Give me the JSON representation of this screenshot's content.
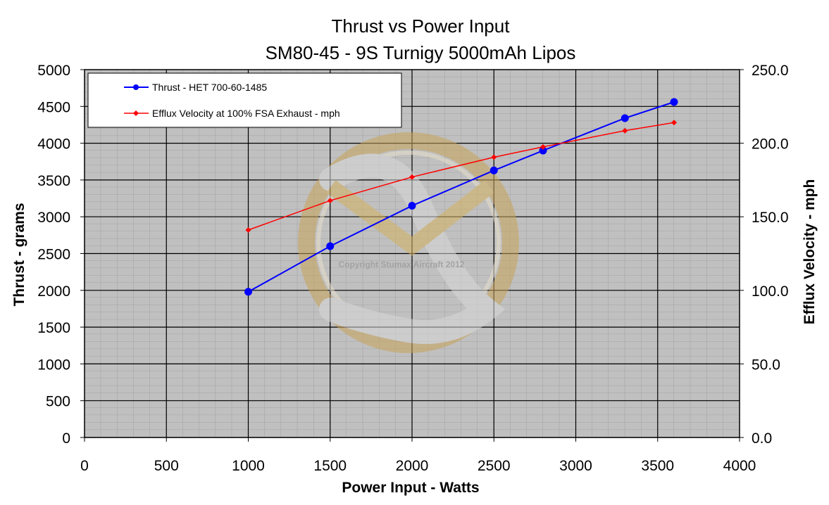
{
  "chart_data": {
    "type": "line",
    "title": "Thrust vs Power Input",
    "subtitle": "SM80-45 - 9S Turnigy 5000mAh Lipos",
    "xlabel": "Power Input - Watts",
    "ylabel": "Thrust - grams",
    "y2label": "Efflux Velocity - mph",
    "xlim": [
      0,
      4000
    ],
    "ylim": [
      0,
      5000
    ],
    "y2lim": [
      0,
      250
    ],
    "x_ticks": [
      "0",
      "500",
      "1000",
      "1500",
      "2000",
      "2500",
      "3000",
      "3500",
      "4000"
    ],
    "y_ticks": [
      "0",
      "500",
      "1000",
      "1500",
      "2000",
      "2500",
      "3000",
      "3500",
      "4000",
      "4500",
      "5000"
    ],
    "y2_ticks": [
      "0.0",
      "50.0",
      "100.0",
      "150.0",
      "200.0",
      "250.0"
    ],
    "grid": true,
    "legend_position": "top-left",
    "watermark": "Copyright Stumax Aircraft 2012",
    "series": [
      {
        "name": "Thrust - HET 700-60-1485",
        "axis": "left",
        "color": "#0000ff",
        "marker": "circle",
        "x": [
          1000,
          1500,
          2000,
          2500,
          2800,
          3300,
          3600
        ],
        "y": [
          1980,
          2600,
          3150,
          3630,
          3900,
          4340,
          4560
        ]
      },
      {
        "name": "Efflux Velocity at 100% FSA Exhaust - mph",
        "axis": "right",
        "color": "#ff0000",
        "marker": "diamond",
        "x": [
          1000,
          1500,
          2000,
          2500,
          2800,
          3300,
          3600
        ],
        "y": [
          141,
          161,
          177,
          190.5,
          197.5,
          208.5,
          214
        ]
      }
    ]
  }
}
